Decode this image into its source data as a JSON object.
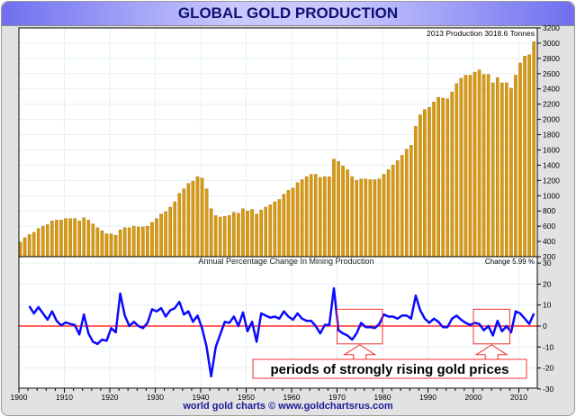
{
  "chart_data": [
    {
      "type": "bar",
      "title": "GLOBAL GOLD PRODUCTION",
      "annotation": "2013  Production  3018.6  Tonnes",
      "x_start": 1900,
      "x_end": 2013,
      "ylim": [
        200,
        3200
      ],
      "yticks": [
        200,
        400,
        600,
        800,
        1000,
        1200,
        1400,
        1600,
        1800,
        2000,
        2200,
        2400,
        2600,
        2800,
        3000,
        3200
      ],
      "color": "#d89a10",
      "grid": true,
      "values": [
        390,
        450,
        490,
        520,
        570,
        600,
        620,
        670,
        680,
        680,
        700,
        700,
        700,
        670,
        710,
        680,
        630,
        580,
        540,
        500,
        500,
        480,
        550,
        580,
        580,
        600,
        590,
        590,
        600,
        650,
        700,
        760,
        790,
        850,
        920,
        1030,
        1090,
        1160,
        1190,
        1250,
        1230,
        1090,
        830,
        740,
        720,
        730,
        740,
        780,
        770,
        830,
        800,
        820,
        760,
        810,
        850,
        880,
        920,
        950,
        1020,
        1070,
        1100,
        1170,
        1210,
        1250,
        1280,
        1280,
        1240,
        1250,
        1250,
        1480,
        1450,
        1390,
        1340,
        1250,
        1200,
        1220,
        1220,
        1210,
        1210,
        1220,
        1280,
        1340,
        1400,
        1460,
        1530,
        1610,
        1660,
        1910,
        2060,
        2130,
        2160,
        2230,
        2290,
        2280,
        2270,
        2360,
        2470,
        2540,
        2580,
        2580,
        2620,
        2650,
        2590,
        2590,
        2480,
        2550,
        2480,
        2480,
        2410,
        2580,
        2740,
        2830,
        2850,
        3018.6
      ]
    },
    {
      "type": "line",
      "title": "Annual Percentage Change In Mining Production",
      "annotation": "Change 5.99 %",
      "x_start": 1902,
      "ylim": [
        -30,
        30
      ],
      "yticks": [
        -30,
        -20,
        -10,
        0,
        10,
        20,
        30
      ],
      "color": "#0a0aff",
      "zero_line_color": "#ff0000",
      "values": [
        9.5,
        6,
        9,
        6,
        3,
        7,
        2.5,
        0.3,
        1.7,
        1,
        0.5,
        -4,
        5.5,
        -3.5,
        -7.5,
        -8.5,
        -6.5,
        -7,
        -1,
        -3,
        15.5,
        5,
        0,
        2,
        0,
        -1,
        1.5,
        8,
        7,
        8.5,
        4.5,
        7.5,
        8.5,
        11.5,
        5.5,
        7,
        2,
        5,
        -1,
        -10,
        -24,
        -10,
        -4,
        2,
        1.5,
        4.5,
        0,
        6.5,
        -2.5,
        2,
        -7.5,
        6,
        5,
        4,
        4.5,
        3.5,
        7,
        4.5,
        3,
        6,
        3.5,
        2.5,
        2.5,
        0,
        -3.5,
        0.5,
        0.5,
        18,
        -2,
        -3.5,
        -4.5,
        -6.5,
        -3.5,
        1.5,
        -0.5,
        -0.5,
        -1,
        1,
        5.5,
        4.5,
        4.5,
        3.5,
        5,
        5,
        3.5,
        14.5,
        7.5,
        3.5,
        1.5,
        3.5,
        2,
        -0.5,
        -0.5,
        3.5,
        5,
        3,
        1.5,
        0.5,
        1.5,
        1,
        -2,
        0,
        -4.5,
        2.5,
        -2.5,
        0,
        -3,
        7,
        6,
        3.5,
        1,
        6
      ],
      "highlight_periods": [
        [
          1970,
          1980
        ],
        [
          2000,
          2008
        ]
      ],
      "callout": "periods of strongly rising gold prices"
    }
  ],
  "xticks": [
    1900,
    1910,
    1920,
    1930,
    1940,
    1950,
    1960,
    1970,
    1980,
    1990,
    2000,
    2010
  ],
  "footer": "world gold charts © www.goldchartsrus.com"
}
